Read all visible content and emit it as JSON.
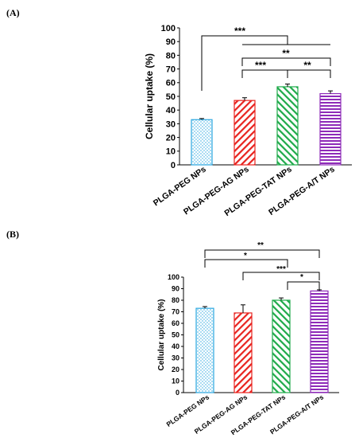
{
  "chart_data": [
    {
      "panel_label": "(A)",
      "type": "bar",
      "categories": [
        "PLGA-PEG NPs",
        "PLGA-PEG-AG NPs",
        "PLGA-PEG-TAT NPs",
        "PLGA-PEG-A/T NPs"
      ],
      "values": [
        33,
        47,
        57,
        52
      ],
      "errors": [
        0.8,
        2,
        2,
        2
      ],
      "ylabel": "Cellular uptake (%)",
      "ylim": [
        0,
        100
      ],
      "yticks": [
        "0",
        "10",
        "20",
        "30",
        "40",
        "50",
        "60",
        "70",
        "80",
        "90",
        "100"
      ],
      "series_colors": [
        "#2aa7e0",
        "#e8231f",
        "#1faa4a",
        "#8e2bb8"
      ],
      "patterns": [
        "dots",
        "diagonal",
        "diagonal-reverse",
        "horizontal"
      ],
      "significance": [
        {
          "label": "***",
          "from": 0,
          "to": "group-rest"
        },
        {
          "label": "**",
          "from": 1,
          "to": 3
        },
        {
          "label": "***",
          "from": 1,
          "to": 2
        },
        {
          "label": "**",
          "from": 2,
          "to": 3
        }
      ],
      "grid": false,
      "legend": "none"
    },
    {
      "panel_label": "(B)",
      "type": "bar",
      "categories": [
        "PLGA-PEG NPs",
        "PLGA-PEG-AG NPs",
        "PLGA-PEG-TAT NPs",
        "PLGA-PEG-A/T NPs"
      ],
      "values": [
        73,
        69,
        80,
        88
      ],
      "errors": [
        1.5,
        7,
        2,
        1
      ],
      "ylabel": "Cellular uptake (%)",
      "ylim": [
        0,
        100
      ],
      "yticks": [
        "0",
        "10",
        "20",
        "30",
        "40",
        "50",
        "60",
        "70",
        "80",
        "90",
        "100"
      ],
      "series_colors": [
        "#2aa7e0",
        "#e8231f",
        "#1faa4a",
        "#8e2bb8"
      ],
      "patterns": [
        "dots",
        "diagonal",
        "diagonal-reverse",
        "horizontal"
      ],
      "significance": [
        {
          "label": "**",
          "from": 0,
          "to": 3
        },
        {
          "label": "*",
          "from": 0,
          "to": 2
        },
        {
          "label": "***",
          "from": 1,
          "to": 3
        },
        {
          "label": "*",
          "from": 2,
          "to": 3
        }
      ],
      "grid": false,
      "legend": "none"
    }
  ]
}
